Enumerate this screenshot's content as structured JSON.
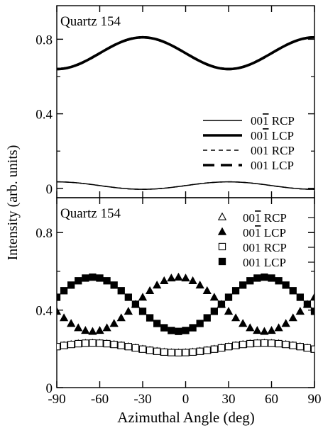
{
  "xlabel": "Azimuthal Angle (deg)",
  "ylabel": "Intensity (arb. units)",
  "chart_data": [
    {
      "type": "line",
      "panel": "top",
      "label": "Quartz 154",
      "xlim": [
        -90,
        90
      ],
      "ylim": [
        -0.05,
        0.98
      ],
      "xticks": [
        -90,
        -60,
        -30,
        0,
        30,
        60,
        90
      ],
      "yticks": [
        0,
        0.4,
        0.8
      ],
      "ytick_labels": [
        "0",
        "0.4",
        "0.8"
      ],
      "legend_position": "right",
      "series": [
        {
          "name": "00̄ 1̄ RCP",
          "label_main": "00",
          "label_bar": "1",
          "label_tail": " RCP",
          "style": "thin-solid",
          "offset": 0.015,
          "amplitude": 0.02,
          "phase_deg": -90
        },
        {
          "name": "00̄ 1̄ LCP",
          "label_main": "00",
          "label_bar": "1",
          "label_tail": " LCP",
          "style": "thick-solid",
          "offset": 0.725,
          "amplitude": 0.085,
          "phase_deg": -30
        },
        {
          "name": "001 RCP",
          "label_main": "001 RCP",
          "label_bar": "",
          "label_tail": "",
          "style": "thin-dashed",
          "offset": 0.015,
          "amplitude": 0.02,
          "phase_deg": 30
        },
        {
          "name": "001 LCP",
          "label_main": "001 LCP",
          "label_bar": "",
          "label_tail": "",
          "style": "thick-dashed",
          "offset": 0.725,
          "amplitude": 0.085,
          "phase_deg": 90
        }
      ]
    },
    {
      "type": "scatter",
      "panel": "bottom",
      "label": "Quartz 154",
      "xlim": [
        -90,
        90
      ],
      "ylim": [
        0,
        0.98
      ],
      "xticks": [
        -90,
        -60,
        -30,
        0,
        30,
        60,
        90
      ],
      "xtick_labels": [
        "-90",
        "-60",
        "-30",
        "0",
        "30",
        "60",
        "90"
      ],
      "yticks": [
        0,
        0.4,
        0.8
      ],
      "ytick_labels": [
        "0",
        "0.4",
        "0.8"
      ],
      "legend_position": "top-right",
      "x": [
        -90,
        -85,
        -80,
        -75,
        -70,
        -65,
        -60,
        -55,
        -50,
        -45,
        -40,
        -35,
        -30,
        -25,
        -20,
        -15,
        -10,
        -5,
        0,
        5,
        10,
        15,
        20,
        25,
        30,
        35,
        40,
        45,
        50,
        55,
        60,
        65,
        70,
        75,
        80,
        85,
        90
      ],
      "series": [
        {
          "name": "00̄ 1̄ RCP",
          "label_main": "00",
          "label_bar": "1",
          "label_tail": " RCP",
          "marker": "open-triangle",
          "offset": 0.205,
          "amplitude": 0.025,
          "phase_deg": -65
        },
        {
          "name": "00̄ 1̄ LCP",
          "label_main": "00",
          "label_bar": "1",
          "label_tail": " LCP",
          "marker": "filled-triangle",
          "offset": 0.43,
          "amplitude": 0.14,
          "phase_deg": -5
        },
        {
          "name": "001 RCP",
          "label_main": "001 RCP",
          "label_bar": "",
          "label_tail": "",
          "marker": "open-square",
          "offset": 0.205,
          "amplitude": 0.025,
          "phase_deg": 55
        },
        {
          "name": "001 LCP",
          "label_main": "001 LCP",
          "label_bar": "",
          "label_tail": "",
          "marker": "filled-square",
          "offset": 0.43,
          "amplitude": 0.14,
          "phase_deg": 55
        }
      ]
    }
  ]
}
